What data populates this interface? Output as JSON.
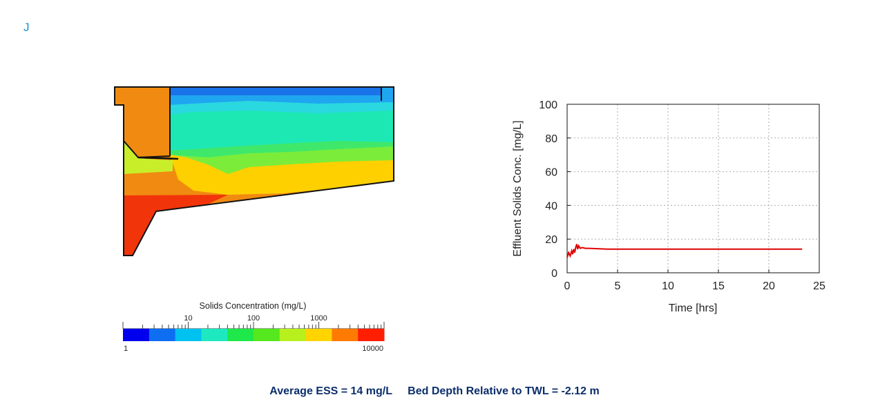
{
  "header": {
    "corner_label": "J"
  },
  "colors": {
    "accent": "#1a8fd6",
    "footer_text": "#0b2e6b",
    "series_line": "#e00000"
  },
  "legend": {
    "title": "Solids Concentration (mg/L)",
    "major_labels": [
      "10",
      "100",
      "1000"
    ],
    "min_label": "1",
    "max_label": "10000",
    "colors": [
      "#0000ee",
      "#0d6ef2",
      "#00c2f0",
      "#1de8c0",
      "#1ee84a",
      "#55e81e",
      "#b8f01e",
      "#ffd400",
      "#ff7a00",
      "#ff1e00"
    ]
  },
  "contour_colors": {
    "deep_blue": "#1a73e8",
    "blue": "#1fa6f0",
    "cyan": "#2ad8e0",
    "teal": "#1de8b4",
    "green": "#3fe86a",
    "light_green": "#7cec3a",
    "yellow_green": "#c8ee2a",
    "yellow": "#ffd000",
    "orange": "#f08a10",
    "orange_red": "#f55a0a",
    "red": "#f2340a"
  },
  "chart_data": {
    "type": "line",
    "xlabel": "Time [hrs]",
    "ylabel": "Effluent Solids Conc. [mg/L]",
    "xlim": [
      0,
      25
    ],
    "ylim": [
      0,
      100
    ],
    "xticks": [
      "0",
      "5",
      "10",
      "15",
      "20",
      "25"
    ],
    "yticks": [
      "0",
      "20",
      "40",
      "60",
      "80",
      "100"
    ],
    "grid": true,
    "series": [
      {
        "x": [
          0,
          0.15,
          0.3,
          0.45,
          0.55,
          0.65,
          0.75,
          0.85,
          0.95,
          1.05,
          1.15,
          1.3,
          1.5,
          1.8,
          2.2,
          4,
          10,
          15,
          20,
          23.3
        ],
        "y": [
          9,
          12,
          10,
          13,
          11,
          14,
          12,
          15,
          17,
          14,
          16,
          14.5,
          15,
          14.5,
          14.5,
          14,
          14,
          14,
          14,
          14
        ]
      }
    ]
  },
  "footer": {
    "ess_text": "Average ESS = 14 mg/L",
    "bed_text": "Bed Depth Relative to TWL = -2.12 m"
  }
}
